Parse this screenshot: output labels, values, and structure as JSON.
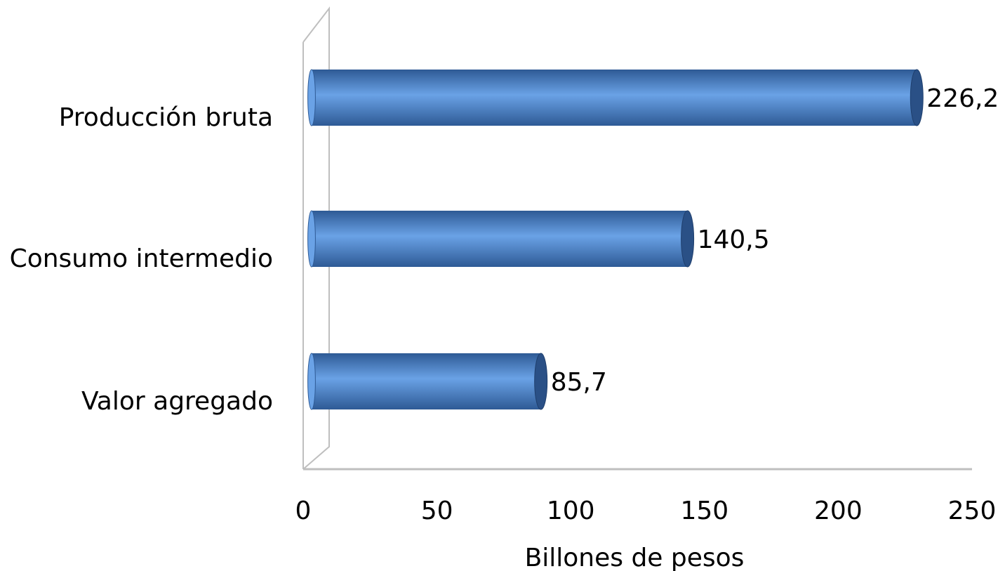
{
  "chart_data": {
    "type": "bar",
    "orientation": "horizontal",
    "style": "3d-cylinder",
    "categories": [
      "Producción bruta",
      "Consumo intermedio",
      "Valor agregado"
    ],
    "values": [
      226.2,
      140.5,
      85.7
    ],
    "value_labels": [
      "226,2",
      "140,5",
      "85,7"
    ],
    "xlabel": "Billones de pesos",
    "ylabel": "",
    "title": "",
    "xlim": [
      0,
      250
    ],
    "xticks": [
      0,
      50,
      100,
      150,
      200,
      250
    ],
    "xtick_labels": [
      "0",
      "50",
      "100",
      "150",
      "200",
      "250"
    ],
    "grid": false,
    "legend": "none",
    "colors": {
      "bar_mid": "#6aa2e6",
      "bar_edge": "#2e5a95",
      "bar_cap": "#2a5086",
      "axis": "#bfbfbf"
    }
  }
}
